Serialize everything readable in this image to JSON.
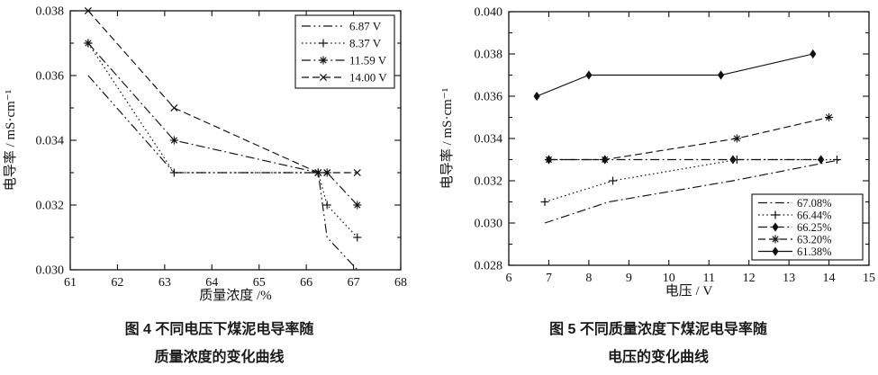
{
  "page": {
    "background": "#ffffff",
    "ink": "#111111"
  },
  "captions": {
    "fig4_line1": "图 4  不同电压下煤泥电导率随",
    "fig4_line2": "质量浓度的变化曲线",
    "fig5_line1": "图 5  不同质量浓度下煤泥电导率随",
    "fig5_line2": "电压的变化曲线"
  },
  "chart_data": [
    {
      "type": "line",
      "title": "",
      "xlabel": "质量浓度 /%",
      "ylabel": "电导率 / mS·cm⁻¹",
      "xlim": [
        61,
        68
      ],
      "ylim": [
        0.03,
        0.038
      ],
      "xticks": [
        61,
        62,
        63,
        64,
        65,
        66,
        67,
        68
      ],
      "yticks_major": [
        0.03,
        0.032,
        0.034,
        0.036,
        0.038
      ],
      "ytick_minor_step": 0.001,
      "y_decimals": 3,
      "grid": false,
      "legend_position": "top-right",
      "series": [
        {
          "name": "6.87 V",
          "line": "dashdotdot",
          "marker": "none",
          "x": [
            61.38,
            63.2,
            66.25,
            66.44,
            67.08
          ],
          "y": [
            0.036,
            0.033,
            0.033,
            0.031,
            0.03
          ]
        },
        {
          "name": "8.37 V",
          "line": "dotted",
          "marker": "plus",
          "x": [
            61.38,
            63.2,
            66.25,
            66.44,
            67.08
          ],
          "y": [
            0.037,
            0.033,
            0.033,
            0.032,
            0.031
          ]
        },
        {
          "name": "11.59 V",
          "line": "dashdot",
          "marker": "asterisk",
          "x": [
            61.38,
            63.2,
            66.25,
            66.44,
            67.08
          ],
          "y": [
            0.037,
            0.034,
            0.033,
            0.033,
            0.032
          ]
        },
        {
          "name": "14.00 V",
          "line": "dashed",
          "marker": "x",
          "x": [
            61.38,
            63.2,
            66.25,
            66.44,
            67.08
          ],
          "y": [
            0.038,
            0.035,
            0.033,
            0.033,
            0.033
          ]
        }
      ]
    },
    {
      "type": "line",
      "title": "",
      "xlabel": "电压 / V",
      "ylabel": "电导率 / mS·cm⁻¹",
      "xlim": [
        6,
        15
      ],
      "ylim": [
        0.028,
        0.04
      ],
      "xticks": [
        6,
        7,
        8,
        9,
        10,
        11,
        12,
        13,
        14,
        15
      ],
      "yticks_major": [
        0.028,
        0.03,
        0.032,
        0.034,
        0.036,
        0.038,
        0.04
      ],
      "ytick_minor_step": 0.001,
      "y_decimals": 3,
      "grid": false,
      "legend_position": "bottom-right",
      "series": [
        {
          "name": "67.08%",
          "line": "dashdot",
          "marker": "none",
          "x": [
            6.9,
            8.5,
            11.6,
            14.3
          ],
          "y": [
            0.03,
            0.031,
            0.032,
            0.033
          ]
        },
        {
          "name": "66.44%",
          "line": "dotted",
          "marker": "plus",
          "x": [
            6.9,
            8.6,
            11.7,
            14.2
          ],
          "y": [
            0.031,
            0.032,
            0.033,
            0.033
          ]
        },
        {
          "name": "66.25%",
          "line": "dashdot",
          "marker": "diamond",
          "x": [
            7.0,
            8.4,
            11.6,
            13.8
          ],
          "y": [
            0.033,
            0.033,
            0.033,
            0.033
          ]
        },
        {
          "name": "63.20%",
          "line": "dashed",
          "marker": "asterisk",
          "x": [
            7.0,
            8.4,
            11.7,
            14.0
          ],
          "y": [
            0.033,
            0.033,
            0.034,
            0.035
          ]
        },
        {
          "name": "61.38%",
          "line": "solid",
          "marker": "diamond",
          "x": [
            6.7,
            8.0,
            11.3,
            13.6
          ],
          "y": [
            0.036,
            0.037,
            0.037,
            0.038
          ]
        }
      ]
    }
  ]
}
